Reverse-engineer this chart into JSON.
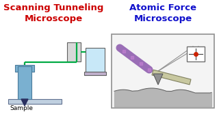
{
  "title_left": "Scanning Tunneling\nMicroscope",
  "title_right": "Atomic Force\nMicroscope",
  "title_left_color": "#cc0000",
  "title_right_color": "#1010cc",
  "bg_color": "#ffffff",
  "sample_label": "Sample",
  "stm": {
    "tube_color": "#7ab0d0",
    "tube_edge": "#4a7a9a",
    "tip_color": "#2a3060",
    "sample_color": "#c0d0e0",
    "sample_edge": "#607090",
    "wire_color": "#00aa44",
    "box_color": "#d8d8d8",
    "box_edge": "#606060",
    "screen_color": "#c8e8f8",
    "laptop_base_color": "#c0b0cc"
  },
  "afm": {
    "box_bg": "#f4f4f4",
    "box_border": "#909090",
    "surface_color": "#b0b0b0",
    "laser_color": "#9060b0",
    "cantilever_color": "#c8c8a0",
    "cantilever_edge": "#808060",
    "tip_color": "#909090",
    "tip_edge": "#505050",
    "detector_bg": "#ffffff",
    "detector_border": "#707070",
    "detector_line": "#404040",
    "detector_dot": "#cc2200",
    "beam_color": "#909090"
  }
}
